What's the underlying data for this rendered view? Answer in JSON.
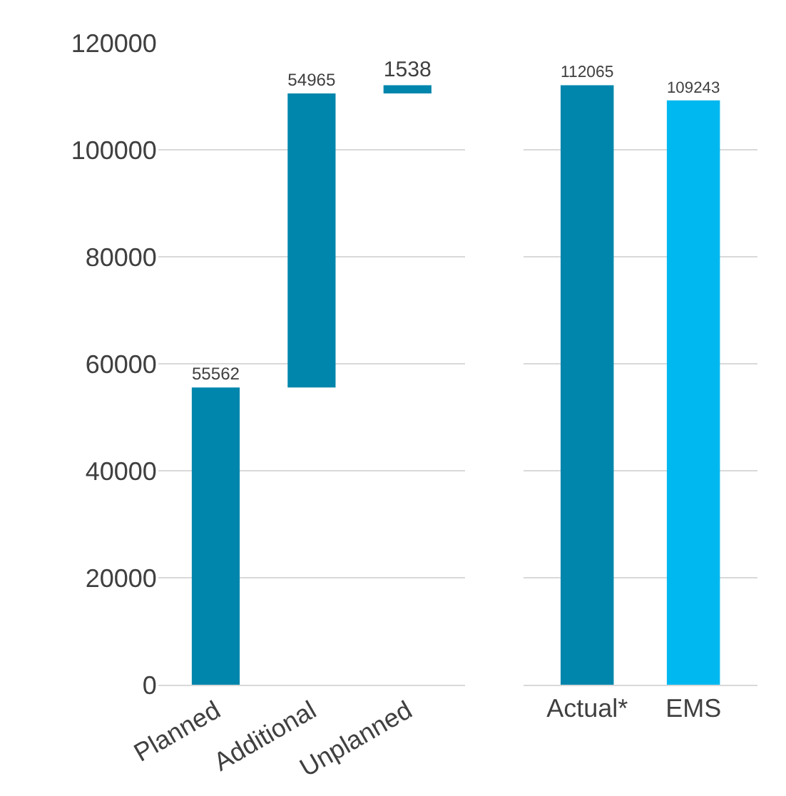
{
  "chart_data": [
    {
      "type": "bar",
      "categories": [
        "Planned",
        "Additional",
        "Unplanned"
      ],
      "values": [
        55562,
        54965,
        1538
      ],
      "base": [
        0,
        55562,
        110527
      ],
      "color": "#0086ac",
      "ylim": [
        0,
        120000
      ],
      "yticks": [
        0,
        20000,
        40000,
        60000,
        80000,
        100000,
        120000
      ],
      "grid": "y",
      "data_labels": true,
      "legend": false
    },
    {
      "type": "bar",
      "categories": [
        "Actual*",
        "EMS"
      ],
      "values": [
        112065,
        109243
      ],
      "colors": [
        "#0086ac",
        "#00b8f0"
      ],
      "ylim": [
        0,
        120000
      ],
      "yticks": [
        0,
        20000,
        40000,
        60000,
        80000,
        100000,
        120000
      ],
      "grid": "y",
      "data_labels": true,
      "tick_labels": "x",
      "legend": false
    }
  ]
}
